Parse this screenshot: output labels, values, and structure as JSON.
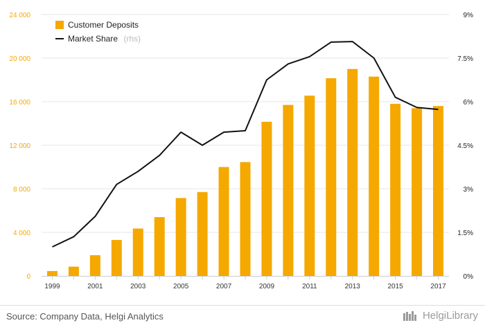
{
  "chart_data": {
    "type": "bar+line",
    "x": [
      "1999",
      "2000",
      "2001",
      "2002",
      "2003",
      "2004",
      "2005",
      "2006",
      "2007",
      "2008",
      "2009",
      "2010",
      "2011",
      "2012",
      "2013",
      "2014",
      "2015",
      "2016",
      "2017"
    ],
    "x_tick_labels": [
      "1999",
      "2001",
      "2003",
      "2005",
      "2007",
      "2009",
      "2011",
      "2013",
      "2015",
      "2017"
    ],
    "series": [
      {
        "name": "Customer Deposits",
        "type": "bar",
        "axis": "left",
        "color": "#f5a800",
        "values": [
          450,
          850,
          1900,
          3300,
          4350,
          5400,
          7150,
          7700,
          10000,
          10450,
          14150,
          15700,
          16550,
          18150,
          19000,
          18300,
          15800,
          15400,
          15600
        ]
      },
      {
        "name": "Market Share",
        "name_suffix": "(rhs)",
        "type": "line",
        "axis": "right",
        "color": "#111111",
        "values": [
          1.0,
          1.35,
          2.05,
          3.15,
          3.6,
          4.15,
          4.95,
          4.5,
          4.95,
          5.0,
          6.75,
          7.3,
          7.55,
          8.05,
          8.07,
          7.5,
          6.15,
          5.8,
          5.73
        ]
      }
    ],
    "y_left": {
      "ylim": [
        0,
        24000
      ],
      "ticks": [
        0,
        4000,
        8000,
        12000,
        16000,
        20000,
        24000
      ],
      "tick_labels": [
        "0",
        "4 000",
        "8 000",
        "12 000",
        "16 000",
        "20 000",
        "24 000"
      ],
      "color": "#f5a800"
    },
    "y_right": {
      "ylim": [
        0,
        9
      ],
      "ticks": [
        0,
        1.5,
        3,
        4.5,
        6,
        7.5,
        9
      ],
      "tick_labels": [
        "0%",
        "1.5%",
        "3%",
        "4.5%",
        "6%",
        "7.5%",
        "9%"
      ]
    },
    "grid": true,
    "legend": "top-left"
  },
  "footer": {
    "source": "Source: Company Data, Helgi Analytics",
    "brand": "HelgiLibrary"
  }
}
